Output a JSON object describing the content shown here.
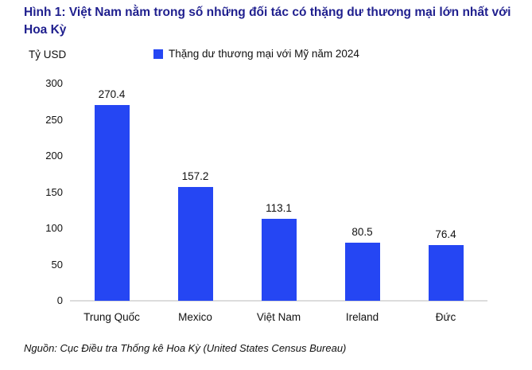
{
  "title": "Hình 1: Việt Nam nằm trong số những đối tác có thặng dư thương mại lớn nhất với Hoa Kỳ",
  "y_axis_unit": "Tỷ USD",
  "legend": {
    "label": "Thặng dư thương mại với Mỹ năm 2024",
    "swatch_color": "#2546F3"
  },
  "source": "Nguồn: Cục Điều tra Thống kê Hoa Kỳ (United States Census Bureau)",
  "colors": {
    "bar": "#2546F3",
    "title": "#1F1F8E",
    "axis_line": "#DCDCDC",
    "text": "#111111"
  },
  "chart_data": {
    "type": "bar",
    "title": "Thặng dư thương mại với Mỹ năm 2024",
    "categories": [
      "Trung Quốc",
      "Mexico",
      "Việt Nam",
      "Ireland",
      "Đức"
    ],
    "values": [
      270.4,
      157.2,
      113.1,
      80.5,
      76.4
    ],
    "xlabel": "",
    "ylabel": "Tỷ USD",
    "ylim": [
      0,
      300
    ],
    "yticks": [
      0,
      50,
      100,
      150,
      200,
      250,
      300
    ],
    "grid": false,
    "legend_position": "top",
    "bar_color": "#2546F3"
  }
}
